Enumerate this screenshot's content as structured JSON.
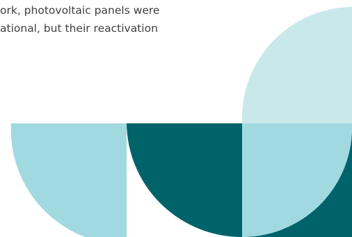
{
  "text": {
    "lines": [
      "ork, photovoltaic panels were",
      "ational, but their reactivation"
    ]
  },
  "graphic": {
    "colors": {
      "pale_teal": "#c9e8ea",
      "light_teal": "#a1d9e1",
      "dark_teal": "#00636a"
    }
  }
}
